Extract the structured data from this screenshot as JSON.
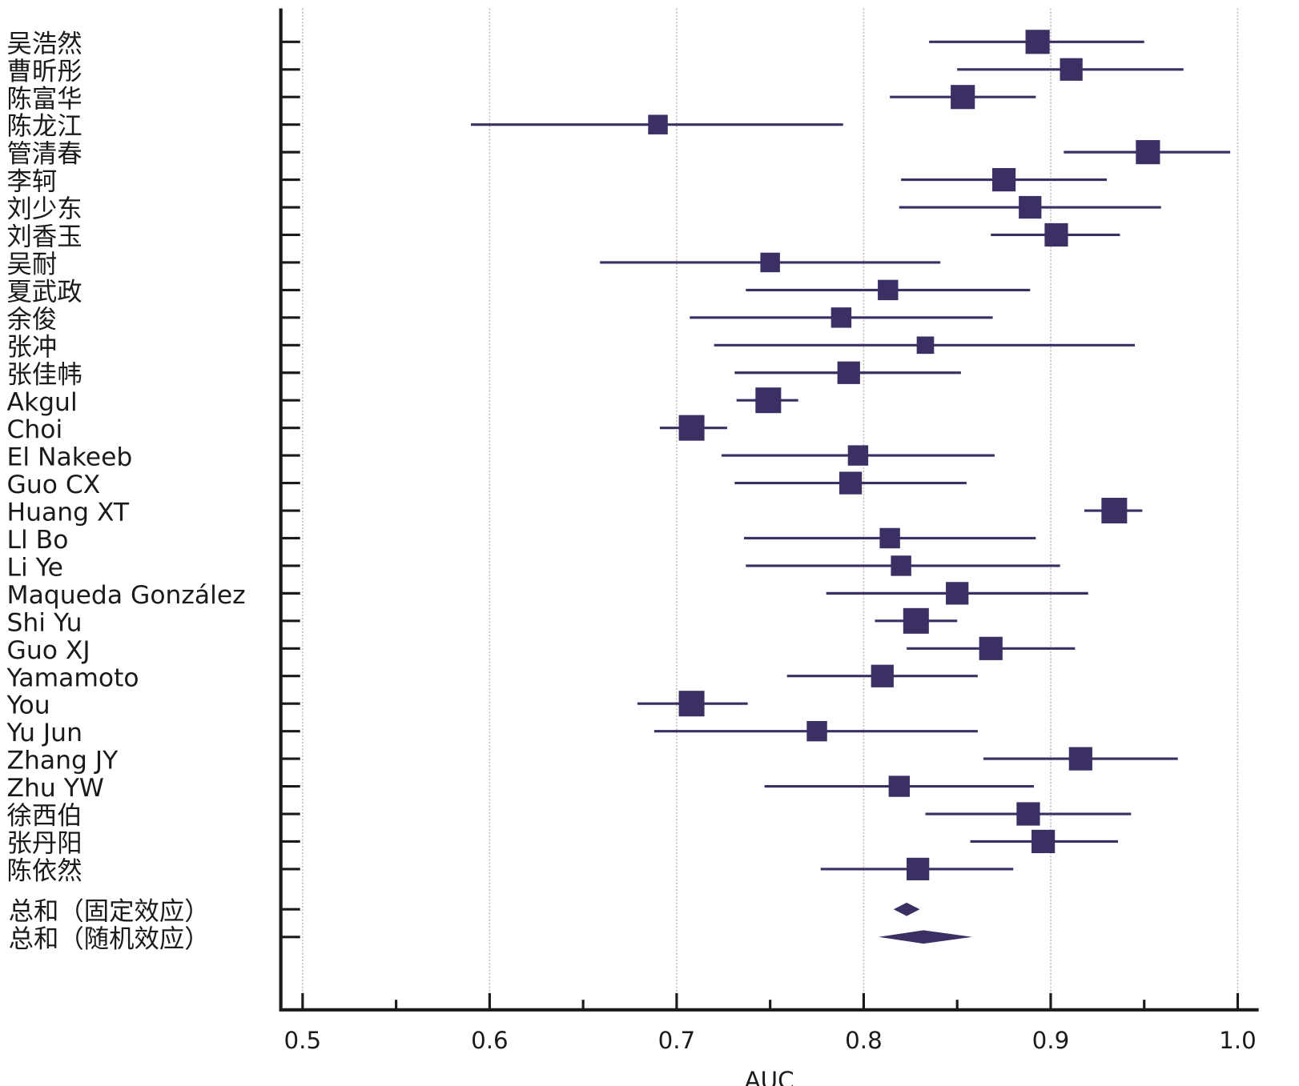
{
  "chart_data": {
    "type": "forest",
    "xlabel": "AUC",
    "xlim": [
      0.5,
      1.0
    ],
    "xticks": [
      "0.5",
      "0.6",
      "0.7",
      "0.8",
      "0.9",
      "1.0"
    ],
    "minor_ticks": [
      0.55,
      0.65,
      0.75,
      0.85,
      0.95
    ],
    "grid": "vertical dotted at major ticks",
    "colors": {
      "marker": "#3b2f63",
      "axis": "#1a1a1a",
      "grid": "#c9b8b8"
    },
    "studies": [
      {
        "name": "吴浩然",
        "auc": 0.893,
        "lo": 0.835,
        "hi": 0.95,
        "weight": 3.2
      },
      {
        "name": "曹昕彤",
        "auc": 0.911,
        "lo": 0.85,
        "hi": 0.971,
        "weight": 3.0
      },
      {
        "name": "陈富华",
        "auc": 0.853,
        "lo": 0.814,
        "hi": 0.892,
        "weight": 3.2
      },
      {
        "name": "陈龙江",
        "auc": 0.69,
        "lo": 0.59,
        "hi": 0.789,
        "weight": 2.6
      },
      {
        "name": "管清春",
        "auc": 0.952,
        "lo": 0.907,
        "hi": 0.996,
        "weight": 3.2
      },
      {
        "name": "李轲",
        "auc": 0.875,
        "lo": 0.82,
        "hi": 0.93,
        "weight": 3.1
      },
      {
        "name": "刘少东",
        "auc": 0.889,
        "lo": 0.819,
        "hi": 0.959,
        "weight": 3.0
      },
      {
        "name": "刘香玉",
        "auc": 0.903,
        "lo": 0.868,
        "hi": 0.937,
        "weight": 3.1
      },
      {
        "name": "吴耐",
        "auc": 0.75,
        "lo": 0.659,
        "hi": 0.841,
        "weight": 2.6
      },
      {
        "name": "夏武政",
        "auc": 0.813,
        "lo": 0.737,
        "hi": 0.889,
        "weight": 2.7
      },
      {
        "name": "余俊",
        "auc": 0.788,
        "lo": 0.707,
        "hi": 0.869,
        "weight": 2.7
      },
      {
        "name": "张冲",
        "auc": 0.833,
        "lo": 0.72,
        "hi": 0.945,
        "weight": 2.3
      },
      {
        "name": "张佳帏",
        "auc": 0.792,
        "lo": 0.731,
        "hi": 0.852,
        "weight": 3.0
      },
      {
        "name": "Akgul",
        "auc": 0.749,
        "lo": 0.732,
        "hi": 0.765,
        "weight": 3.4
      },
      {
        "name": "Choi",
        "auc": 0.708,
        "lo": 0.691,
        "hi": 0.727,
        "weight": 3.4
      },
      {
        "name": "El Nakeeb",
        "auc": 0.797,
        "lo": 0.724,
        "hi": 0.87,
        "weight": 2.7
      },
      {
        "name": "Guo CX",
        "auc": 0.793,
        "lo": 0.731,
        "hi": 0.855,
        "weight": 3.0
      },
      {
        "name": "Huang XT",
        "auc": 0.934,
        "lo": 0.918,
        "hi": 0.949,
        "weight": 3.4
      },
      {
        "name": "Ll Bo",
        "auc": 0.814,
        "lo": 0.736,
        "hi": 0.892,
        "weight": 2.7
      },
      {
        "name": "Li Ye",
        "auc": 0.82,
        "lo": 0.737,
        "hi": 0.905,
        "weight": 2.7
      },
      {
        "name": "Maqueda González",
        "auc": 0.85,
        "lo": 0.78,
        "hi": 0.92,
        "weight": 3.0
      },
      {
        "name": "Shi Yu",
        "auc": 0.828,
        "lo": 0.806,
        "hi": 0.85,
        "weight": 3.4
      },
      {
        "name": "Guo XJ",
        "auc": 0.868,
        "lo": 0.823,
        "hi": 0.913,
        "weight": 3.1
      },
      {
        "name": "Yamamoto",
        "auc": 0.81,
        "lo": 0.759,
        "hi": 0.861,
        "weight": 3.0
      },
      {
        "name": "You",
        "auc": 0.708,
        "lo": 0.679,
        "hi": 0.738,
        "weight": 3.4
      },
      {
        "name": "Yu Jun",
        "auc": 0.775,
        "lo": 0.688,
        "hi": 0.861,
        "weight": 2.7
      },
      {
        "name": "Zhang JY",
        "auc": 0.916,
        "lo": 0.864,
        "hi": 0.968,
        "weight": 3.1
      },
      {
        "name": "Zhu YW",
        "auc": 0.819,
        "lo": 0.747,
        "hi": 0.891,
        "weight": 2.8
      },
      {
        "name": "徐西伯",
        "auc": 0.888,
        "lo": 0.833,
        "hi": 0.943,
        "weight": 3.1
      },
      {
        "name": "张丹阳",
        "auc": 0.896,
        "lo": 0.857,
        "hi": 0.936,
        "weight": 3.1
      },
      {
        "name": "陈依然",
        "auc": 0.829,
        "lo": 0.777,
        "hi": 0.88,
        "weight": 3.0
      }
    ],
    "pooled": [
      {
        "name": "总和（固定效应）",
        "auc": 0.823,
        "lo": 0.816,
        "hi": 0.83
      },
      {
        "name": "总和（随机效应）",
        "auc": 0.832,
        "lo": 0.808,
        "hi": 0.858
      }
    ]
  }
}
